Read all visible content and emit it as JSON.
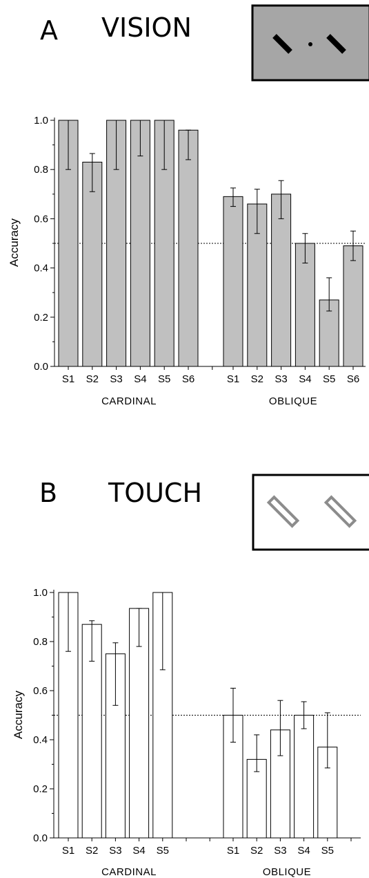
{
  "colors": {
    "vision_bar_fill": "#c0c0c0",
    "touch_bar_fill": "#ffffff",
    "bar_stroke": "#000000",
    "vision_inset_bg": "#a6a6a6",
    "touch_inset_bar": "#8c8c8c"
  },
  "panels": [
    {
      "letter": "A",
      "title": "VISION",
      "inset": "gray box with two dark bars tilted 45° on either side of a central dot",
      "chart_data": {
        "type": "bar",
        "ylabel": "Accuracy",
        "ylim": [
          0,
          1
        ],
        "yticks": [
          "0.0",
          "0.2",
          "0.4",
          "0.6",
          "0.8",
          "1.0"
        ],
        "chance_level": 0.5,
        "groups": [
          {
            "name": "CARDINAL",
            "categories": [
              "S1",
              "S2",
              "S3",
              "S4",
              "S5",
              "S6"
            ],
            "values": [
              1.0,
              0.83,
              1.0,
              1.0,
              1.0,
              0.96
            ],
            "err_low": [
              0.8,
              0.71,
              0.8,
              0.855,
              0.8,
              0.84
            ],
            "err_high": [
              1.0,
              0.865,
              1.0,
              1.0,
              1.0,
              0.96
            ]
          },
          {
            "name": "OBLIQUE",
            "categories": [
              "S1",
              "S2",
              "S3",
              "S4",
              "S5",
              "S6"
            ],
            "values": [
              0.69,
              0.66,
              0.7,
              0.5,
              0.27,
              0.49
            ],
            "err_low": [
              0.65,
              0.54,
              0.6,
              0.42,
              0.225,
              0.43
            ],
            "err_high": [
              0.725,
              0.72,
              0.755,
              0.54,
              0.36,
              0.55
            ]
          }
        ]
      }
    },
    {
      "letter": "B",
      "title": "TOUCH",
      "inset": "white box with two outlined bars tilted 45°",
      "chart_data": {
        "type": "bar",
        "ylabel": "Accuracy",
        "ylim": [
          0,
          1
        ],
        "yticks": [
          "0.0",
          "0.2",
          "0.4",
          "0.6",
          "0.8",
          "1.0"
        ],
        "chance_level": 0.5,
        "groups": [
          {
            "name": "CARDINAL",
            "categories": [
              "S1",
              "S2",
              "S3",
              "S4",
              "S5"
            ],
            "values": [
              1.0,
              0.87,
              0.75,
              0.935,
              1.0
            ],
            "err_low": [
              0.76,
              0.72,
              0.54,
              0.78,
              0.685
            ],
            "err_high": [
              1.0,
              0.885,
              0.795,
              0.935,
              1.0
            ]
          },
          {
            "name": "OBLIQUE",
            "categories": [
              "S1",
              "S2",
              "S3",
              "S4",
              "S5"
            ],
            "values": [
              0.5,
              0.32,
              0.44,
              0.5,
              0.37
            ],
            "err_low": [
              0.39,
              0.27,
              0.335,
              0.445,
              0.285
            ],
            "err_high": [
              0.61,
              0.42,
              0.56,
              0.555,
              0.51
            ]
          }
        ]
      }
    }
  ]
}
